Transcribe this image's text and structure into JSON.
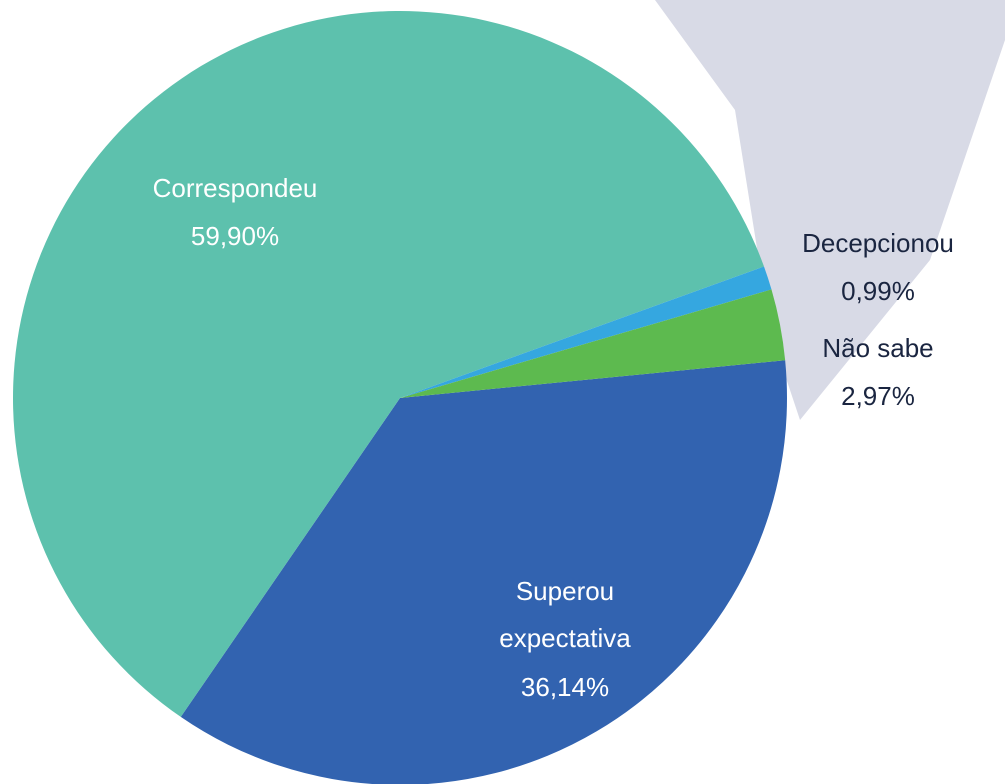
{
  "chart_data": {
    "type": "pie",
    "categories": [
      "Superou expectativa",
      "Correspondeu",
      "Decepcionou",
      "Não sabe"
    ],
    "values": [
      36.14,
      59.9,
      0.99,
      2.97
    ],
    "value_labels": [
      "36,14%",
      "59,90%",
      "0,99%",
      "2,97%"
    ],
    "colors": [
      "#3263b0",
      "#5dc1ad",
      "#35a7e0",
      "#5dba4f"
    ]
  }
}
